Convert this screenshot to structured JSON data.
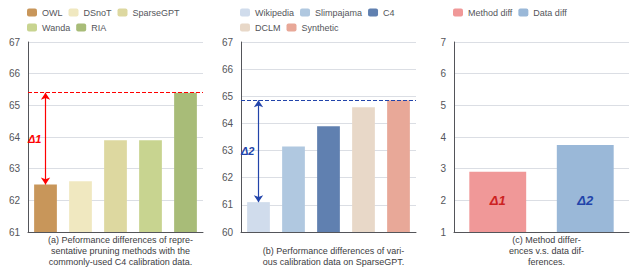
{
  "chart_data": [
    {
      "type": "bar",
      "title": "(a) Peformance differences of repre-\nsentative pruning methods with the\ncommonly-used C4 calibration data.",
      "categories": [
        "OWL",
        "DSnoT",
        "SparseGPT",
        "Wanda",
        "RIA"
      ],
      "values": [
        62.5,
        62.6,
        63.9,
        63.9,
        65.4
      ],
      "colors": [
        "#c8965a",
        "#f0e8c0",
        "#ddd8a0",
        "#c8d490",
        "#a8bc78"
      ],
      "ylim": [
        61,
        67
      ],
      "yticks": [
        61,
        62,
        63,
        64,
        65,
        66,
        67
      ],
      "grid": true,
      "legend": "upper left",
      "tick_labels": "y",
      "hline": {
        "value": 65.4,
        "color": "red",
        "line_style": "dashed"
      },
      "annotations": [
        {
          "text": "Δ1",
          "color": "red",
          "category": "OWL",
          "y_from": 62.5,
          "y_to": 65.4
        }
      ]
    },
    {
      "type": "bar",
      "title": "(b) Performance differences of vari-\nous calibration data on SparseGPT.",
      "categories": [
        "Wikipedia",
        "Slimpajama",
        "C4",
        "DCLM",
        "Synthetic"
      ],
      "values": [
        61.1,
        63.15,
        63.9,
        64.6,
        64.85
      ],
      "colors": [
        "#d0dcec",
        "#b0c8e0",
        "#6080b0",
        "#e8d8c8",
        "#e8a898"
      ],
      "ylim": [
        60,
        67
      ],
      "yticks": [
        60,
        61,
        62,
        63,
        64,
        65,
        66,
        67
      ],
      "grid": true,
      "legend": "upper left",
      "tick_labels": "y",
      "hline": {
        "value": 64.85,
        "color": "#2244aa",
        "line_style": "dashed"
      },
      "annotations": [
        {
          "text": "Δ2",
          "color": "#2244aa",
          "category": "Wikipedia",
          "y_from": 61.1,
          "y_to": 64.85
        }
      ]
    },
    {
      "type": "bar",
      "title": "(c) Method differ-\nences v.s. data dif-\nferences.",
      "categories": [
        "Method diff",
        "Data diff"
      ],
      "values": [
        2.9,
        3.75
      ],
      "colors": [
        "#f09898",
        "#9ab8d8"
      ],
      "ylim": [
        1,
        7
      ],
      "yticks": [
        1,
        2,
        3,
        4,
        5,
        6,
        7
      ],
      "grid": true,
      "legend": "upper left",
      "tick_labels": "y",
      "annotations": [
        {
          "text": "Δ1",
          "color": "#cc2222",
          "category": "Method diff",
          "y": 1.8
        },
        {
          "text": "Δ2",
          "color": "#2244aa",
          "category": "Data diff",
          "y": 1.8
        }
      ]
    }
  ]
}
